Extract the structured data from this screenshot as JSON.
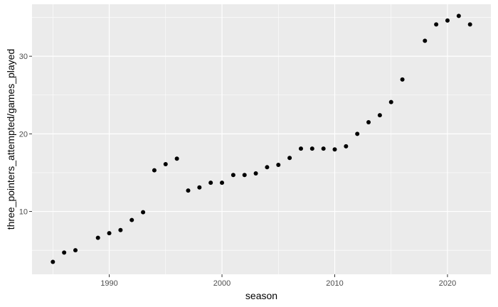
{
  "chart_data": {
    "type": "scatter",
    "xlabel": "season",
    "ylabel": "three_pointers_attempted/games_played",
    "xlim": [
      1983.15,
      2023.85
    ],
    "ylim": [
      1.9,
      36.7
    ],
    "x_ticks": [
      1990,
      2000,
      2010,
      2020
    ],
    "y_ticks": [
      10,
      20,
      30
    ],
    "grid": true,
    "panel_color": "#ebebeb",
    "point_color": "#000000",
    "points": [
      {
        "x": 1985,
        "y": 3.5
      },
      {
        "x": 1986,
        "y": 4.7
      },
      {
        "x": 1987,
        "y": 5.0
      },
      {
        "x": 1989,
        "y": 6.6
      },
      {
        "x": 1990,
        "y": 7.2
      },
      {
        "x": 1991,
        "y": 7.6
      },
      {
        "x": 1992,
        "y": 8.9
      },
      {
        "x": 1993,
        "y": 9.9
      },
      {
        "x": 1994,
        "y": 15.3
      },
      {
        "x": 1995,
        "y": 16.1
      },
      {
        "x": 1996,
        "y": 16.8
      },
      {
        "x": 1997,
        "y": 12.7
      },
      {
        "x": 1998,
        "y": 13.1
      },
      {
        "x": 1999,
        "y": 13.7
      },
      {
        "x": 2000,
        "y": 13.7
      },
      {
        "x": 2001,
        "y": 14.7
      },
      {
        "x": 2002,
        "y": 14.7
      },
      {
        "x": 2003,
        "y": 14.9
      },
      {
        "x": 2004,
        "y": 15.7
      },
      {
        "x": 2005,
        "y": 16.0
      },
      {
        "x": 2006,
        "y": 16.9
      },
      {
        "x": 2007,
        "y": 18.1
      },
      {
        "x": 2008,
        "y": 18.1
      },
      {
        "x": 2009,
        "y": 18.1
      },
      {
        "x": 2010,
        "y": 18.0
      },
      {
        "x": 2011,
        "y": 18.4
      },
      {
        "x": 2012,
        "y": 20.0
      },
      {
        "x": 2013,
        "y": 21.5
      },
      {
        "x": 2014,
        "y": 22.4
      },
      {
        "x": 2015,
        "y": 24.1
      },
      {
        "x": 2016,
        "y": 27.0
      },
      {
        "x": 2018,
        "y": 32.0
      },
      {
        "x": 2019,
        "y": 34.1
      },
      {
        "x": 2020,
        "y": 34.6
      },
      {
        "x": 2021,
        "y": 35.2
      },
      {
        "x": 2022,
        "y": 34.1
      }
    ]
  }
}
